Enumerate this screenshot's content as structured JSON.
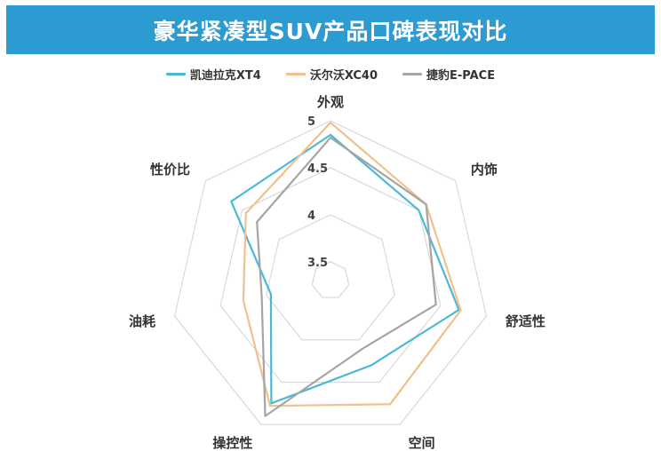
{
  "chart_data": {
    "type": "radar",
    "title": "豪华紧凑型SUV产品口碑表现对比",
    "axes": [
      "外观",
      "内饰",
      "舒适性",
      "空间",
      "操控性",
      "油耗",
      "性价比"
    ],
    "rlim": [
      3.3,
      5
    ],
    "ticks": [
      "3.5",
      "4",
      "4.5",
      "5"
    ],
    "tick_values": [
      3.5,
      4,
      4.5,
      5
    ],
    "grid": true,
    "legend_position": "top",
    "series": [
      {
        "name": "凯迪拉克XT4",
        "color": "#4ab8d8",
        "values": [
          4.85,
          4.5,
          4.7,
          4.3,
          4.75,
          3.95,
          4.65
        ]
      },
      {
        "name": "沃尔沃XC40",
        "color": "#f0c18a",
        "values": [
          4.98,
          4.6,
          4.72,
          4.76,
          4.78,
          4.25,
          4.45
        ]
      },
      {
        "name": "捷豹E-PACE",
        "color": "#a5a5a5",
        "values": [
          4.82,
          4.6,
          4.45,
          4.1,
          4.9,
          4.05,
          4.3
        ]
      }
    ]
  }
}
